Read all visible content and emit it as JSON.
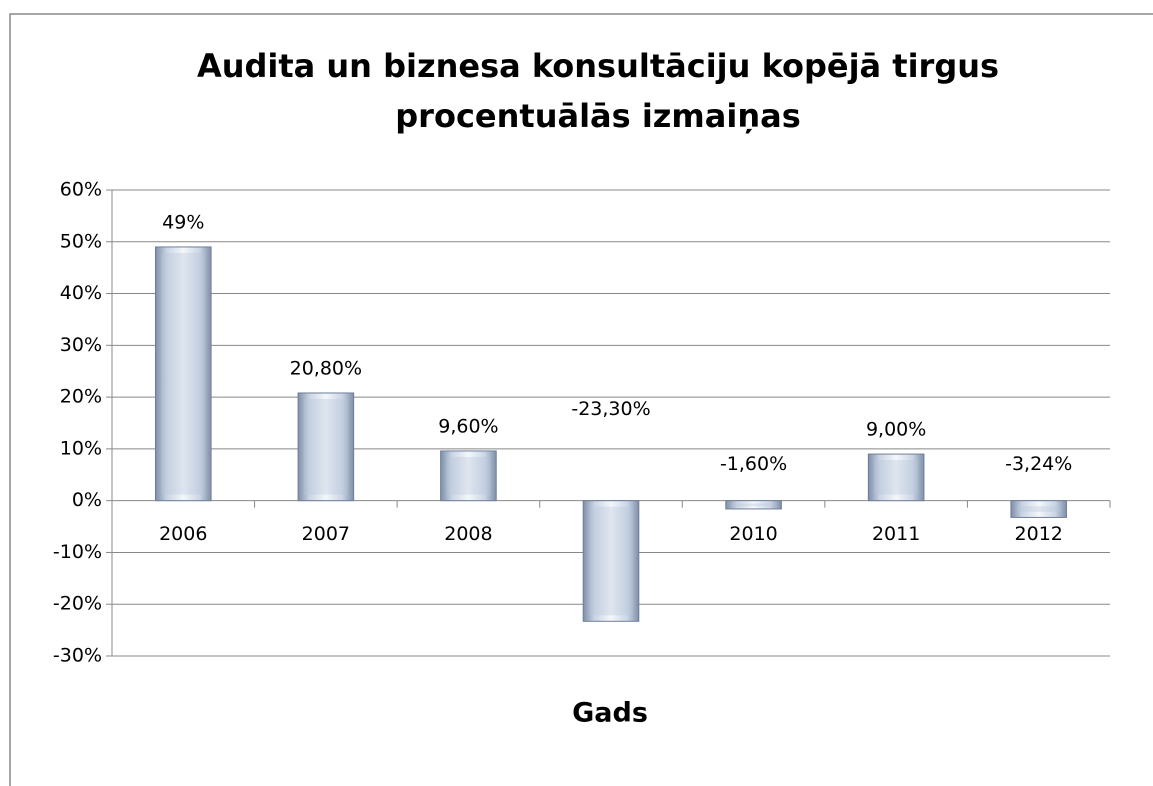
{
  "chart_data": {
    "type": "bar",
    "title": [
      "Audita un biznesa konsultāciju kopējā tirgus",
      "procentuālās izmaiņas"
    ],
    "x_label": "Gads",
    "categories": [
      "2006",
      "2007",
      "2008",
      "2009",
      "2010",
      "2011",
      "2012"
    ],
    "values": [
      49,
      20.8,
      9.6,
      -23.3,
      -1.6,
      9.0,
      -3.24
    ],
    "value_labels": [
      "49%",
      "20,80%",
      "9,60%",
      "-23,30%",
      "-1,60%",
      "9,00%",
      "-3,24%"
    ],
    "color": "#b8c6da",
    "ylim": [
      -30,
      60
    ],
    "yticks": [
      {
        "value": -30,
        "label": "-30%"
      },
      {
        "value": -20,
        "label": "-20%"
      },
      {
        "value": -10,
        "label": "-10%"
      },
      {
        "value": 0,
        "label": "0%"
      },
      {
        "value": 10,
        "label": "10%"
      },
      {
        "value": 20,
        "label": "20%"
      },
      {
        "value": 30,
        "label": "30%"
      },
      {
        "value": 40,
        "label": "40%"
      },
      {
        "value": 50,
        "label": "50%"
      },
      {
        "value": 60,
        "label": "60%"
      }
    ],
    "grid": true
  }
}
